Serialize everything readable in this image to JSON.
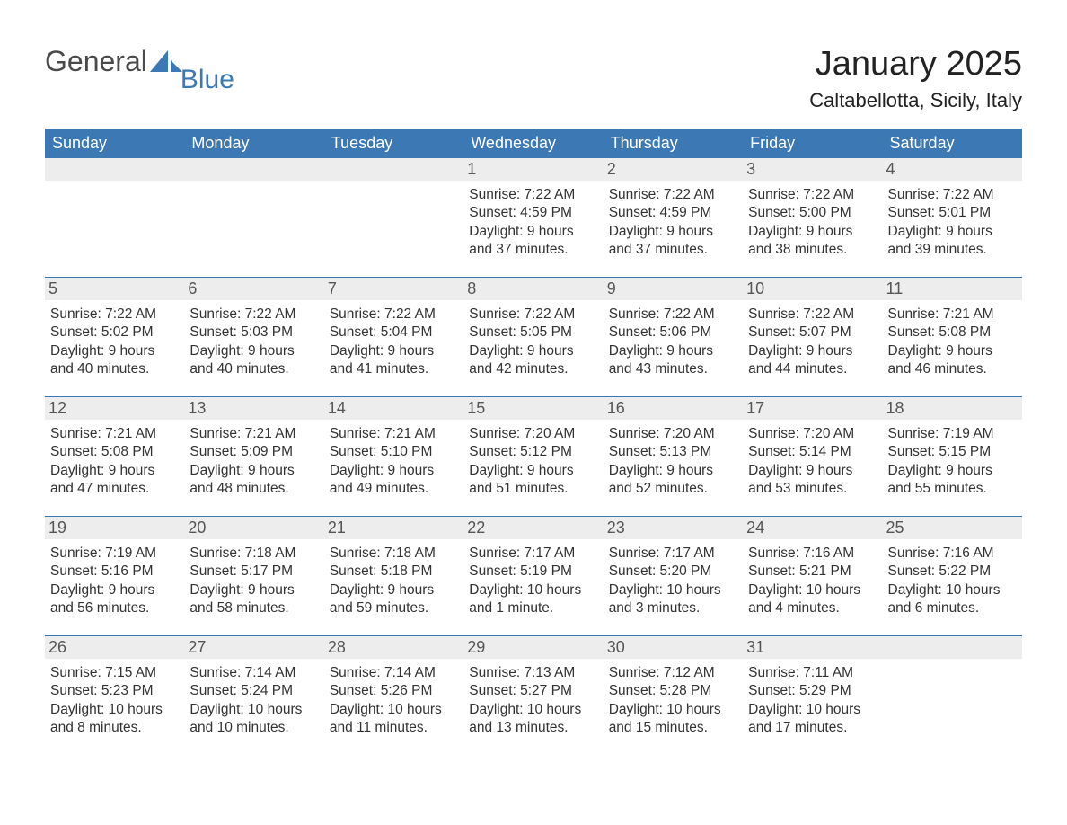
{
  "logo": {
    "general": "General",
    "blue": "Blue"
  },
  "title": "January 2025",
  "subtitle": "Caltabellotta, Sicily, Italy",
  "colors": {
    "brand_blue": "#3b78b4",
    "header_text": "#ffffff",
    "daynum_bg": "#ededed",
    "daynum_text": "#555555",
    "body_text": "#333333",
    "grid_border": "#3b78b4",
    "background": "#ffffff",
    "logo_gray": "#4a4a4a"
  },
  "typography": {
    "title_fontsize": 38,
    "subtitle_fontsize": 22,
    "dayheader_fontsize": 18,
    "daynum_fontsize": 18,
    "body_fontsize": 15.5,
    "font_family": "Arial"
  },
  "layout": {
    "columns": 7,
    "rows": 5,
    "week_start": "Sunday"
  },
  "dayheaders": [
    "Sunday",
    "Monday",
    "Tuesday",
    "Wednesday",
    "Thursday",
    "Friday",
    "Saturday"
  ],
  "weeks": [
    [
      {
        "day": "",
        "sunrise": "",
        "sunset": "",
        "daylight": ""
      },
      {
        "day": "",
        "sunrise": "",
        "sunset": "",
        "daylight": ""
      },
      {
        "day": "",
        "sunrise": "",
        "sunset": "",
        "daylight": ""
      },
      {
        "day": "1",
        "sunrise": "Sunrise: 7:22 AM",
        "sunset": "Sunset: 4:59 PM",
        "daylight": "Daylight: 9 hours and 37 minutes."
      },
      {
        "day": "2",
        "sunrise": "Sunrise: 7:22 AM",
        "sunset": "Sunset: 4:59 PM",
        "daylight": "Daylight: 9 hours and 37 minutes."
      },
      {
        "day": "3",
        "sunrise": "Sunrise: 7:22 AM",
        "sunset": "Sunset: 5:00 PM",
        "daylight": "Daylight: 9 hours and 38 minutes."
      },
      {
        "day": "4",
        "sunrise": "Sunrise: 7:22 AM",
        "sunset": "Sunset: 5:01 PM",
        "daylight": "Daylight: 9 hours and 39 minutes."
      }
    ],
    [
      {
        "day": "5",
        "sunrise": "Sunrise: 7:22 AM",
        "sunset": "Sunset: 5:02 PM",
        "daylight": "Daylight: 9 hours and 40 minutes."
      },
      {
        "day": "6",
        "sunrise": "Sunrise: 7:22 AM",
        "sunset": "Sunset: 5:03 PM",
        "daylight": "Daylight: 9 hours and 40 minutes."
      },
      {
        "day": "7",
        "sunrise": "Sunrise: 7:22 AM",
        "sunset": "Sunset: 5:04 PM",
        "daylight": "Daylight: 9 hours and 41 minutes."
      },
      {
        "day": "8",
        "sunrise": "Sunrise: 7:22 AM",
        "sunset": "Sunset: 5:05 PM",
        "daylight": "Daylight: 9 hours and 42 minutes."
      },
      {
        "day": "9",
        "sunrise": "Sunrise: 7:22 AM",
        "sunset": "Sunset: 5:06 PM",
        "daylight": "Daylight: 9 hours and 43 minutes."
      },
      {
        "day": "10",
        "sunrise": "Sunrise: 7:22 AM",
        "sunset": "Sunset: 5:07 PM",
        "daylight": "Daylight: 9 hours and 44 minutes."
      },
      {
        "day": "11",
        "sunrise": "Sunrise: 7:21 AM",
        "sunset": "Sunset: 5:08 PM",
        "daylight": "Daylight: 9 hours and 46 minutes."
      }
    ],
    [
      {
        "day": "12",
        "sunrise": "Sunrise: 7:21 AM",
        "sunset": "Sunset: 5:08 PM",
        "daylight": "Daylight: 9 hours and 47 minutes."
      },
      {
        "day": "13",
        "sunrise": "Sunrise: 7:21 AM",
        "sunset": "Sunset: 5:09 PM",
        "daylight": "Daylight: 9 hours and 48 minutes."
      },
      {
        "day": "14",
        "sunrise": "Sunrise: 7:21 AM",
        "sunset": "Sunset: 5:10 PM",
        "daylight": "Daylight: 9 hours and 49 minutes."
      },
      {
        "day": "15",
        "sunrise": "Sunrise: 7:20 AM",
        "sunset": "Sunset: 5:12 PM",
        "daylight": "Daylight: 9 hours and 51 minutes."
      },
      {
        "day": "16",
        "sunrise": "Sunrise: 7:20 AM",
        "sunset": "Sunset: 5:13 PM",
        "daylight": "Daylight: 9 hours and 52 minutes."
      },
      {
        "day": "17",
        "sunrise": "Sunrise: 7:20 AM",
        "sunset": "Sunset: 5:14 PM",
        "daylight": "Daylight: 9 hours and 53 minutes."
      },
      {
        "day": "18",
        "sunrise": "Sunrise: 7:19 AM",
        "sunset": "Sunset: 5:15 PM",
        "daylight": "Daylight: 9 hours and 55 minutes."
      }
    ],
    [
      {
        "day": "19",
        "sunrise": "Sunrise: 7:19 AM",
        "sunset": "Sunset: 5:16 PM",
        "daylight": "Daylight: 9 hours and 56 minutes."
      },
      {
        "day": "20",
        "sunrise": "Sunrise: 7:18 AM",
        "sunset": "Sunset: 5:17 PM",
        "daylight": "Daylight: 9 hours and 58 minutes."
      },
      {
        "day": "21",
        "sunrise": "Sunrise: 7:18 AM",
        "sunset": "Sunset: 5:18 PM",
        "daylight": "Daylight: 9 hours and 59 minutes."
      },
      {
        "day": "22",
        "sunrise": "Sunrise: 7:17 AM",
        "sunset": "Sunset: 5:19 PM",
        "daylight": "Daylight: 10 hours and 1 minute."
      },
      {
        "day": "23",
        "sunrise": "Sunrise: 7:17 AM",
        "sunset": "Sunset: 5:20 PM",
        "daylight": "Daylight: 10 hours and 3 minutes."
      },
      {
        "day": "24",
        "sunrise": "Sunrise: 7:16 AM",
        "sunset": "Sunset: 5:21 PM",
        "daylight": "Daylight: 10 hours and 4 minutes."
      },
      {
        "day": "25",
        "sunrise": "Sunrise: 7:16 AM",
        "sunset": "Sunset: 5:22 PM",
        "daylight": "Daylight: 10 hours and 6 minutes."
      }
    ],
    [
      {
        "day": "26",
        "sunrise": "Sunrise: 7:15 AM",
        "sunset": "Sunset: 5:23 PM",
        "daylight": "Daylight: 10 hours and 8 minutes."
      },
      {
        "day": "27",
        "sunrise": "Sunrise: 7:14 AM",
        "sunset": "Sunset: 5:24 PM",
        "daylight": "Daylight: 10 hours and 10 minutes."
      },
      {
        "day": "28",
        "sunrise": "Sunrise: 7:14 AM",
        "sunset": "Sunset: 5:26 PM",
        "daylight": "Daylight: 10 hours and 11 minutes."
      },
      {
        "day": "29",
        "sunrise": "Sunrise: 7:13 AM",
        "sunset": "Sunset: 5:27 PM",
        "daylight": "Daylight: 10 hours and 13 minutes."
      },
      {
        "day": "30",
        "sunrise": "Sunrise: 7:12 AM",
        "sunset": "Sunset: 5:28 PM",
        "daylight": "Daylight: 10 hours and 15 minutes."
      },
      {
        "day": "31",
        "sunrise": "Sunrise: 7:11 AM",
        "sunset": "Sunset: 5:29 PM",
        "daylight": "Daylight: 10 hours and 17 minutes."
      },
      {
        "day": "",
        "sunrise": "",
        "sunset": "",
        "daylight": ""
      }
    ]
  ]
}
